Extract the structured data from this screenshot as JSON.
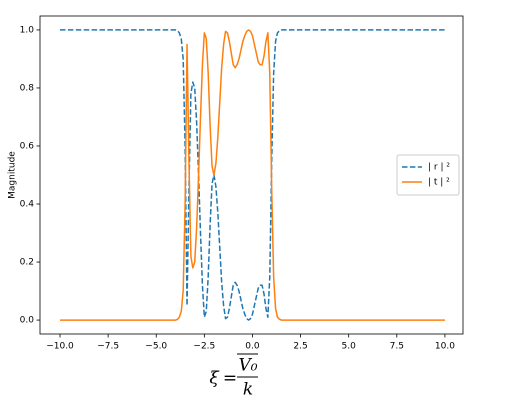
{
  "chart_data": {
    "type": "line",
    "ylabel": "Magnitude",
    "xlabel": {
      "symbol": "ξ",
      "equals": "=",
      "numerator": "V₀",
      "denominator": "k"
    },
    "x": [
      -10,
      -5,
      -4.5,
      -4.0,
      -3.9,
      -3.8,
      -3.7,
      -3.6,
      -3.5,
      -3.4,
      -3.3,
      -3.2,
      -3.1,
      -3.0,
      -2.9,
      -2.8,
      -2.7,
      -2.6,
      -2.5,
      -2.4,
      -2.3,
      -2.2,
      -2.1,
      -2.0,
      -1.9,
      -1.8,
      -1.7,
      -1.6,
      -1.5,
      -1.4,
      -1.3,
      -1.2,
      -1.1,
      -1.0,
      -0.9,
      -0.8,
      -0.7,
      -0.6,
      -0.5,
      -0.4,
      -0.3,
      -0.2,
      -0.1,
      0.0,
      0.1,
      0.2,
      0.3,
      0.4,
      0.5,
      0.6,
      0.7,
      0.8,
      0.9,
      1.0,
      1.1,
      1.2,
      1.3,
      1.4,
      1.5,
      2.0,
      2.5,
      10
    ],
    "series": [
      {
        "name": "| r | ²",
        "color": "#1f77b4",
        "linestyle": "dashed",
        "values": [
          1,
          1,
          1,
          1,
          0.998,
          0.99,
          0.97,
          0.9,
          0.6,
          0.05,
          0.45,
          0.78,
          0.82,
          0.8,
          0.68,
          0.5,
          0.3,
          0.12,
          0.01,
          0.03,
          0.15,
          0.33,
          0.47,
          0.5,
          0.46,
          0.37,
          0.25,
          0.13,
          0.05,
          0.005,
          0.01,
          0.04,
          0.08,
          0.12,
          0.13,
          0.12,
          0.1,
          0.07,
          0.04,
          0.02,
          0.005,
          0.0,
          0.005,
          0.02,
          0.05,
          0.08,
          0.11,
          0.12,
          0.12,
          0.09,
          0.04,
          0.01,
          0.15,
          0.55,
          0.85,
          0.96,
          0.99,
          0.997,
          1,
          1,
          1,
          1
        ]
      },
      {
        "name": "| t | ²",
        "color": "#ff7f0e",
        "linestyle": "solid",
        "values": [
          0,
          0,
          0,
          0,
          0.002,
          0.01,
          0.03,
          0.1,
          0.4,
          0.95,
          0.55,
          0.22,
          0.18,
          0.2,
          0.32,
          0.5,
          0.7,
          0.88,
          0.99,
          0.97,
          0.85,
          0.67,
          0.53,
          0.5,
          0.54,
          0.63,
          0.75,
          0.87,
          0.95,
          0.995,
          0.99,
          0.96,
          0.92,
          0.88,
          0.87,
          0.88,
          0.9,
          0.93,
          0.96,
          0.98,
          0.995,
          1.0,
          0.995,
          0.98,
          0.95,
          0.92,
          0.89,
          0.88,
          0.88,
          0.91,
          0.96,
          0.99,
          0.85,
          0.45,
          0.15,
          0.04,
          0.01,
          0.003,
          0,
          0,
          0,
          0
        ]
      }
    ],
    "xlim": [
      -11.04,
      10.94
    ],
    "ylim": [
      -0.048,
      1.048
    ],
    "xticks": [
      {
        "value": -10,
        "label": "−10.0"
      },
      {
        "value": -7.5,
        "label": "−7.5"
      },
      {
        "value": -5,
        "label": "−5.0"
      },
      {
        "value": -2.5,
        "label": "−2.5"
      },
      {
        "value": 0,
        "label": "0.0"
      },
      {
        "value": 2.5,
        "label": "2.5"
      },
      {
        "value": 5,
        "label": "5.0"
      },
      {
        "value": 7.5,
        "label": "7.5"
      },
      {
        "value": 10,
        "label": "10.0"
      }
    ],
    "yticks": [
      {
        "value": 0,
        "label": "0.0"
      },
      {
        "value": 0.2,
        "label": "0.2"
      },
      {
        "value": 0.4,
        "label": "0.4"
      },
      {
        "value": 0.6,
        "label": "0.6"
      },
      {
        "value": 0.8,
        "label": "0.8"
      },
      {
        "value": 1.0,
        "label": "1.0"
      }
    ],
    "legend": "center right",
    "grid": false
  }
}
